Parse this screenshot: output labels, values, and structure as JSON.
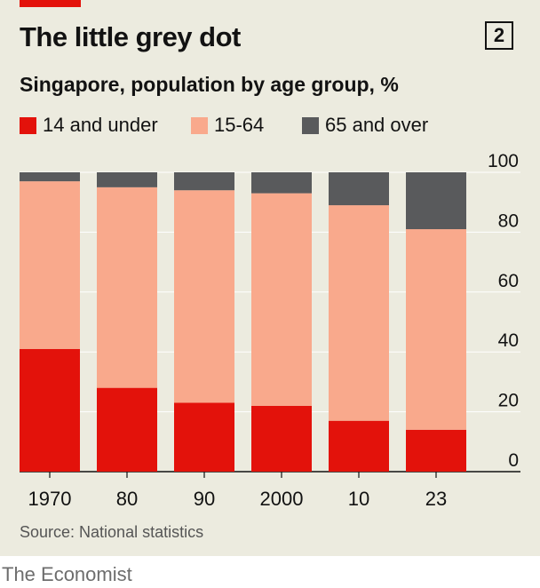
{
  "header": {
    "title": "The little grey dot",
    "badge": "2"
  },
  "chart_data": {
    "type": "bar",
    "stacked": true,
    "title": "The little grey dot",
    "subtitle": "Singapore, population by age group, %",
    "categories": [
      "1970",
      "80",
      "90",
      "2000",
      "10",
      "23"
    ],
    "series": [
      {
        "name": "14 and under",
        "color": "#e3120b",
        "values": [
          41,
          28,
          23,
          22,
          17,
          14
        ]
      },
      {
        "name": "15-64",
        "color": "#f9a98c",
        "values": [
          56,
          67,
          71,
          71,
          72,
          67
        ]
      },
      {
        "name": "65 and over",
        "color": "#595a5c",
        "values": [
          3,
          5,
          6,
          7,
          11,
          19
        ]
      }
    ],
    "ylim": [
      0,
      100
    ],
    "yticks": [
      "0",
      "20",
      "40",
      "60",
      "80",
      "100"
    ],
    "grid": true,
    "legend_position": "top-left",
    "y_axis_position": "right"
  },
  "footer": {
    "source": "Source: National statistics",
    "brand": "The Economist"
  },
  "colors": {
    "background": "#ecebdf",
    "accent": "#e3120b",
    "text": "#121212"
  }
}
